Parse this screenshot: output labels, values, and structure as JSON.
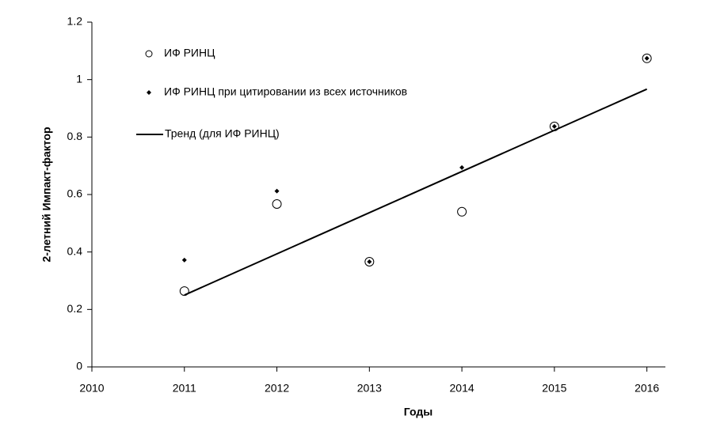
{
  "chart_data": {
    "type": "scatter",
    "x_label": "Годы",
    "y_label": "2-летний Импакт-фактор",
    "x": [
      2011,
      2012,
      2013,
      2014,
      2015,
      2016
    ],
    "series": [
      {
        "name": "ИФ РИНЦ",
        "marker": "circle",
        "color": "#000000",
        "values": [
          0.264,
          0.567,
          0.366,
          0.54,
          0.837,
          1.074
        ]
      },
      {
        "name": "ИФ РИНЦ при цитировании из всех источников",
        "marker": "diamond",
        "color": "#000000",
        "values": [
          0.372,
          0.612,
          0.366,
          0.694,
          0.837,
          1.074
        ]
      },
      {
        "name": "Тренд (для ИФ РИНЦ)",
        "marker": "line",
        "color": "#000000",
        "x": [
          2011,
          2016
        ],
        "values": [
          0.25,
          0.967
        ]
      }
    ],
    "xlim": [
      2010,
      2016.2
    ],
    "ylim": [
      0,
      1.2
    ],
    "xticks": [
      2010,
      2011,
      2012,
      2013,
      2014,
      2015,
      2016
    ],
    "yticks": [
      0,
      0.2,
      0.4,
      0.6,
      0.8,
      1,
      1.2
    ],
    "grid": false,
    "legend": "top-left"
  }
}
